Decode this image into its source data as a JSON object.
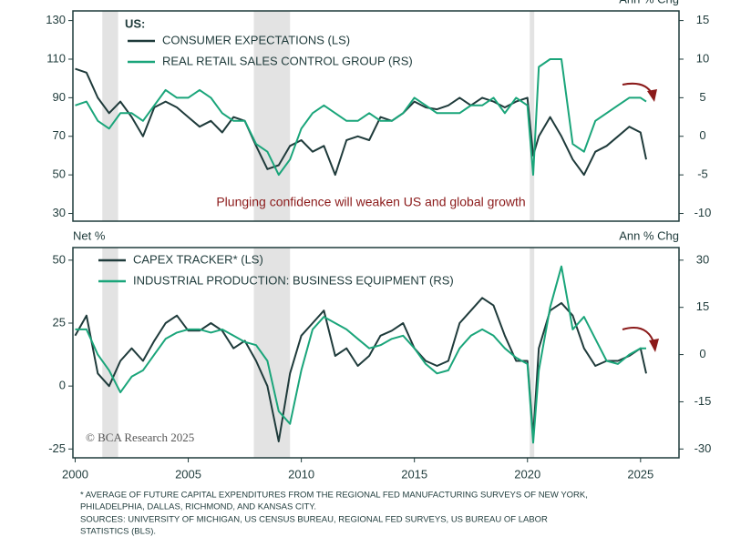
{
  "chart_data": [
    {
      "type": "line",
      "legend_title": "US:",
      "annotation": "Plunging confidence will weaken US and global growth",
      "y2_label": "Ann % Chg",
      "legend": "upper left",
      "x": [
        2000,
        2000.5,
        2001,
        2001.5,
        2002,
        2002.5,
        2003,
        2003.5,
        2004,
        2004.5,
        2005,
        2005.5,
        2006,
        2006.5,
        2007,
        2007.5,
        2008,
        2008.5,
        2009,
        2009.5,
        2010,
        2010.5,
        2011,
        2011.5,
        2012,
        2012.5,
        2013,
        2013.5,
        2014,
        2014.5,
        2015,
        2015.5,
        2016,
        2016.5,
        2017,
        2017.5,
        2018,
        2018.5,
        2019,
        2019.5,
        2020,
        2020.25,
        2020.5,
        2021,
        2021.5,
        2022,
        2022.5,
        2023,
        2023.5,
        2024,
        2024.5,
        2025,
        2025.25
      ],
      "series": [
        {
          "name": "CONSUMER EXPECTATIONS (LS)",
          "color": "#1f3b3b",
          "values": [
            105,
            103,
            90,
            82,
            88,
            80,
            70,
            85,
            88,
            85,
            80,
            75,
            78,
            72,
            80,
            78,
            65,
            53,
            55,
            65,
            68,
            62,
            65,
            50,
            68,
            70,
            68,
            80,
            78,
            82,
            88,
            85,
            84,
            86,
            90,
            86,
            90,
            88,
            85,
            88,
            90,
            60,
            70,
            80,
            70,
            58,
            50,
            62,
            65,
            70,
            75,
            72,
            58
          ]
        },
        {
          "name": "REAL RETAIL SALES CONTROL GROUP (RS)",
          "color": "#1aa57a",
          "axis": "y2",
          "values": [
            4,
            4.5,
            2,
            1,
            3,
            3,
            2,
            4,
            6,
            5,
            5,
            6,
            5,
            3,
            2,
            2,
            -1,
            -2,
            -5,
            -3,
            1,
            3,
            4,
            3,
            2,
            2,
            3,
            2,
            2,
            3,
            5,
            4,
            3,
            3,
            3,
            4,
            4,
            5,
            3,
            5,
            4,
            -5,
            9,
            10,
            10,
            -1,
            -2,
            2,
            3,
            4,
            5,
            5,
            4.5
          ]
        }
      ],
      "shaded_periods": [
        [
          2001.2,
          2001.9
        ],
        [
          2007.9,
          2009.5
        ],
        [
          2020.1,
          2020.3
        ]
      ],
      "xlim": [
        1999.9,
        2026.7
      ],
      "ylim": [
        26,
        135
      ],
      "yticks": [
        30,
        50,
        70,
        90,
        110,
        130
      ],
      "y2lim": [
        -11,
        16.25
      ],
      "y2ticks": [
        -10,
        -5,
        0,
        5,
        10,
        15
      ]
    },
    {
      "type": "line",
      "y_label": "Net %",
      "y2_label": "Ann % Chg",
      "credit": "© BCA Research 2025",
      "legend": "upper left",
      "x": [
        2000,
        2000.5,
        2001,
        2001.5,
        2002,
        2002.5,
        2003,
        2003.5,
        2004,
        2004.5,
        2005,
        2005.5,
        2006,
        2006.5,
        2007,
        2007.5,
        2008,
        2008.5,
        2009,
        2009.5,
        2010,
        2010.5,
        2011,
        2011.5,
        2012,
        2012.5,
        2013,
        2013.5,
        2014,
        2014.5,
        2015,
        2015.5,
        2016,
        2016.5,
        2017,
        2017.5,
        2018,
        2018.5,
        2019,
        2019.5,
        2020,
        2020.25,
        2020.5,
        2021,
        2021.5,
        2022,
        2022.5,
        2023,
        2023.5,
        2024,
        2024.5,
        2025,
        2025.25
      ],
      "series": [
        {
          "name": "CAPEX TRACKER* (LS)",
          "color": "#1f3b3b",
          "values": [
            20,
            28,
            5,
            0,
            10,
            15,
            10,
            18,
            25,
            28,
            22,
            22,
            25,
            22,
            15,
            18,
            10,
            0,
            -22,
            5,
            20,
            25,
            30,
            12,
            15,
            8,
            12,
            20,
            22,
            25,
            15,
            10,
            8,
            10,
            25,
            30,
            35,
            32,
            20,
            10,
            10,
            -20,
            15,
            30,
            33,
            28,
            15,
            8,
            10,
            10,
            12,
            15,
            5
          ]
        },
        {
          "name": "INDUSTRIAL PRODUCTION: BUSINESS EQUIPMENT (RS)",
          "color": "#1aa57a",
          "axis": "y2",
          "values": [
            8,
            8,
            0,
            -5,
            -12,
            -7,
            -5,
            0,
            5,
            7,
            8,
            8,
            7,
            8,
            6,
            4,
            3,
            -2,
            -18,
            -22,
            -5,
            8,
            12,
            10,
            8,
            5,
            2,
            3,
            5,
            6,
            2,
            -3,
            -6,
            -5,
            2,
            6,
            8,
            6,
            2,
            -1,
            -3,
            -28,
            -5,
            15,
            28,
            8,
            12,
            5,
            -2,
            -3,
            0,
            2,
            2
          ]
        }
      ],
      "shaded_periods": [
        [
          2001.2,
          2001.9
        ],
        [
          2007.9,
          2009.5
        ],
        [
          2020.1,
          2020.3
        ]
      ],
      "xlim": [
        1999.9,
        2026.7
      ],
      "xticks": [
        2000,
        2005,
        2010,
        2015,
        2020,
        2025
      ],
      "ylim": [
        -28.5,
        55
      ],
      "yticks": [
        -25,
        0,
        25,
        50
      ],
      "y2lim": [
        -32.8,
        34
      ],
      "y2ticks": [
        -30,
        -15,
        0,
        15,
        30
      ]
    }
  ],
  "footnotes": [
    "* AVERAGE OF FUTURE CAPITAL EXPENDITURES FROM THE REGIONAL FED MANUFACTURING SURVEYS OF NEW YORK,",
    "PHILADELPHIA, DALLAS, RICHMOND, AND KANSAS CITY.",
    "SOURCES: UNIVERSITY OF MICHIGAN, US CENSUS BUREAU, REGIONAL FED SURVEYS, US BUREAU OF LABOR",
    "STATISTICS (BLS)."
  ]
}
